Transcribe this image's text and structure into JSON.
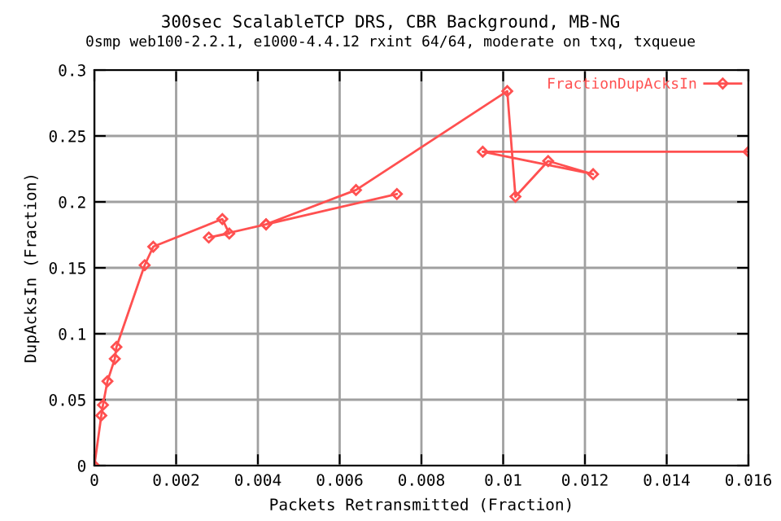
{
  "chart_data": {
    "type": "line",
    "title": "300sec ScalableTCP DRS, CBR Background, MB-NG",
    "subtitle": "0smp web100-2.2.1, e1000-4.4.12 rxint 64/64, moderate on txq, txqueue",
    "xlabel": "Packets Retransmitted (Fraction)",
    "ylabel": "DupAcksIn (Fraction)",
    "series": [
      {
        "name": "FractionDupAcksIn",
        "color": "#ff5050",
        "x": [
          0,
          0.00017,
          0.00021,
          0.00032,
          0.0005,
          0.00054,
          0.00123,
          0.00144,
          0.00313,
          0.0033,
          0.0028,
          0.0042,
          0.0074,
          0.0042,
          0.0064,
          0.0101,
          0.0103,
          0.0111,
          0.0122,
          0.0095,
          0.016
        ],
        "values": [
          0,
          0.038,
          0.046,
          0.064,
          0.081,
          0.09,
          0.152,
          0.166,
          0.187,
          0.176,
          0.173,
          0.183,
          0.206,
          0.183,
          0.209,
          0.284,
          0.204,
          0.231,
          0.221,
          0.238,
          0.238
        ]
      }
    ],
    "xlim": [
      0,
      0.016
    ],
    "ylim": [
      0,
      0.3
    ],
    "xticks": [
      0,
      0.002,
      0.004,
      0.006,
      0.008,
      0.01,
      0.012,
      0.014,
      0.016
    ],
    "yticks": [
      0,
      0.05,
      0.1,
      0.15,
      0.2,
      0.25,
      0.3
    ],
    "grid": true,
    "legend": "top right",
    "marker": "diamond",
    "line_style": "solid"
  }
}
